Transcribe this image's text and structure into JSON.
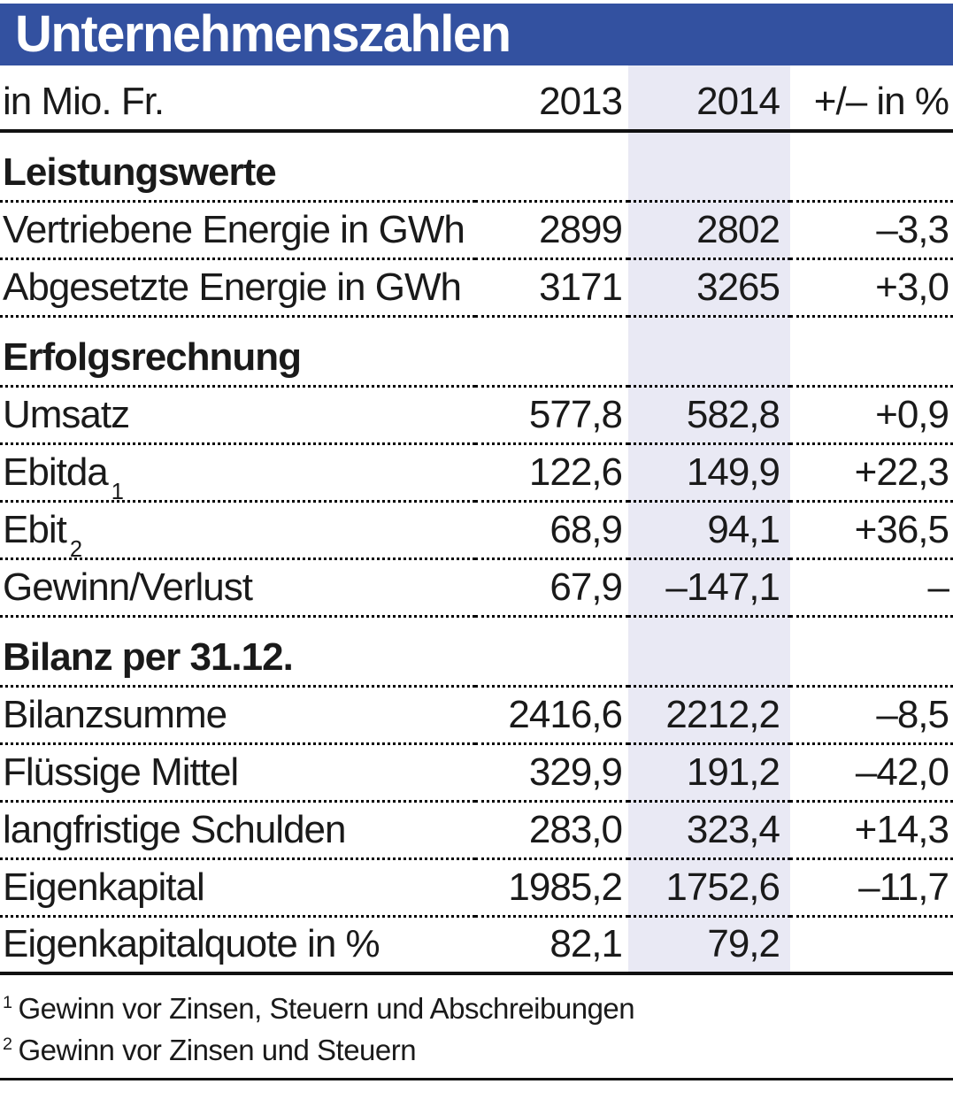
{
  "title": "Unternehmenszahlen",
  "colors": {
    "banner_blue": "#3351a0",
    "highlight_lavender": "#e9e9f4",
    "text": "#1a1a1a"
  },
  "chart_data": {
    "type": "table",
    "title": "Unternehmenszahlen",
    "unit_label": "in Mio. Fr.",
    "columns": [
      "in Mio. Fr.",
      "2013",
      "2014",
      "+/– in %"
    ],
    "highlighted_column": "2014",
    "sections": [
      {
        "heading": "Leistungswerte",
        "rows": [
          {
            "label": "Vertriebene Energie in GWh",
            "sup": "",
            "v2013": "2899",
            "v2014": "2802",
            "change": "–3,3"
          },
          {
            "label": "Abgesetzte Energie in GWh",
            "sup": "",
            "v2013": "3171",
            "v2014": "3265",
            "change": "+3,0"
          }
        ]
      },
      {
        "heading": "Erfolgsrechnung",
        "rows": [
          {
            "label": "Umsatz",
            "sup": "",
            "v2013": "577,8",
            "v2014": "582,8",
            "change": "+0,9"
          },
          {
            "label": "Ebitda",
            "sup": "1",
            "v2013": "122,6",
            "v2014": "149,9",
            "change": "+22,3"
          },
          {
            "label": "Ebit",
            "sup": "2",
            "v2013": "68,9",
            "v2014": "94,1",
            "change": "+36,5"
          },
          {
            "label": "Gewinn/Verlust",
            "sup": "",
            "v2013": "67,9",
            "v2014": "–147,1",
            "change": "–"
          }
        ]
      },
      {
        "heading": "Bilanz per 31.12.",
        "rows": [
          {
            "label": "Bilanzsumme",
            "sup": "",
            "v2013": "2416,6",
            "v2014": "2212,2",
            "change": "–8,5"
          },
          {
            "label": "Flüssige Mittel",
            "sup": "",
            "v2013": "329,9",
            "v2014": "191,2",
            "change": "–42,0"
          },
          {
            "label": "langfristige Schulden",
            "sup": "",
            "v2013": "283,0",
            "v2014": "323,4",
            "change": "+14,3"
          },
          {
            "label": "Eigenkapital",
            "sup": "",
            "v2013": "1985,2",
            "v2014": "1752,6",
            "change": "–11,7"
          },
          {
            "label": "Eigenkapitalquote in %",
            "sup": "",
            "v2013": "82,1",
            "v2014": "79,2",
            "change": ""
          }
        ]
      }
    ]
  },
  "footnotes": [
    {
      "marker": "1",
      "text": "Gewinn vor Zinsen, Steuern und Abschreibungen"
    },
    {
      "marker": "2",
      "text": "Gewinn vor Zinsen und Steuern"
    }
  ]
}
